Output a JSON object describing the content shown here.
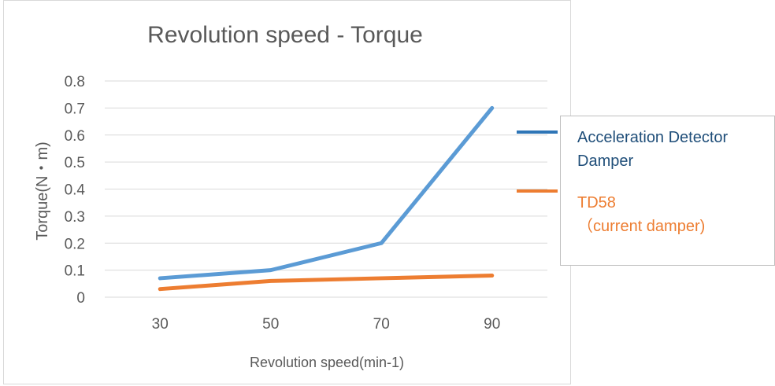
{
  "chart_data": {
    "type": "line",
    "title": "Revolution speed - Torque",
    "xlabel": "Revolution speed(min-1)",
    "ylabel": "Torque(N・m)",
    "categories": [
      "30",
      "50",
      "70",
      "90"
    ],
    "ylim": [
      0,
      0.8
    ],
    "yticks": [
      "0",
      "0.1",
      "0.2",
      "0.3",
      "0.4",
      "0.5",
      "0.6",
      "0.7",
      "0.8"
    ],
    "grid": true,
    "legend_position": "right",
    "series": [
      {
        "name_line1": "Acceleration Detector",
        "name_line2": "Damper",
        "color": "#5b9bd5",
        "legend_color": "#2e75b6",
        "label_color": "#1f4e79",
        "values": [
          0.07,
          0.1,
          0.2,
          0.7
        ]
      },
      {
        "name_line1": "TD58",
        "name_line2": "（current damper)",
        "color": "#ed7d31",
        "legend_color": "#ed7d31",
        "label_color": "#ed7d31",
        "values": [
          0.03,
          0.06,
          0.07,
          0.08
        ]
      }
    ]
  }
}
